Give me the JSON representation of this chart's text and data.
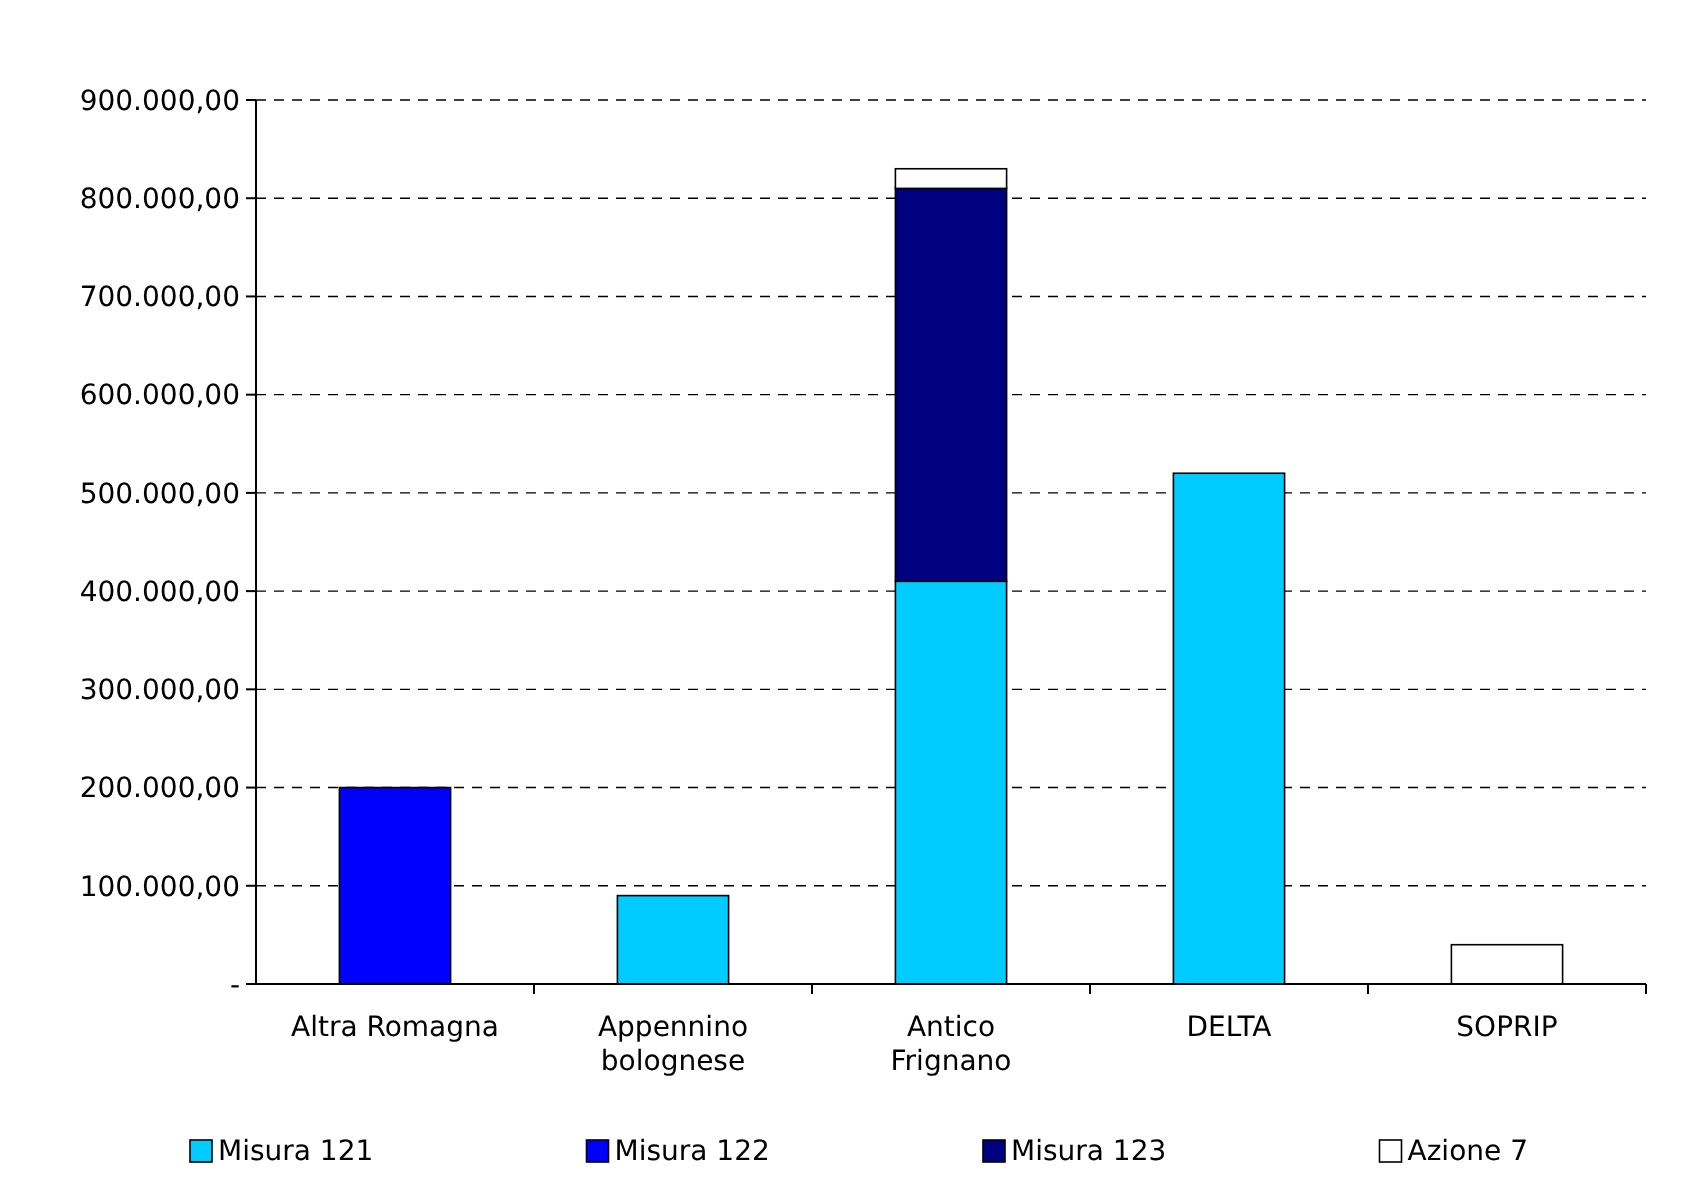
{
  "chart_data": {
    "type": "bar",
    "stacked": true,
    "categories": [
      "Altra Romagna",
      "Appennino bolognese",
      "Antico Frignano",
      "DELTA",
      "SOPRIP"
    ],
    "series": [
      {
        "name": "Misura 121",
        "color": "#00ccff",
        "values": [
          null,
          90000,
          410000,
          520000,
          null
        ]
      },
      {
        "name": "Misura 122",
        "color": "#0000ff",
        "values": [
          200000,
          null,
          null,
          null,
          null
        ]
      },
      {
        "name": "Misura 123",
        "color": "#000080",
        "values": [
          null,
          null,
          400000,
          null,
          null
        ]
      },
      {
        "name": "Azione 7",
        "color": "#ffffff",
        "values": [
          null,
          null,
          20000,
          null,
          40000
        ]
      }
    ],
    "ylim": [
      0,
      900000
    ],
    "yticks": [
      {
        "value": 0,
        "label": "-"
      },
      {
        "value": 100000,
        "label": "100.000,00"
      },
      {
        "value": 200000,
        "label": "200.000,00"
      },
      {
        "value": 300000,
        "label": "300.000,00"
      },
      {
        "value": 400000,
        "label": "400.000,00"
      },
      {
        "value": 500000,
        "label": "500.000,00"
      },
      {
        "value": 600000,
        "label": "600.000,00"
      },
      {
        "value": 700000,
        "label": "700.000,00"
      },
      {
        "value": 800000,
        "label": "800.000,00"
      },
      {
        "value": 900000,
        "label": "900.000,00"
      }
    ],
    "grid": "y",
    "legend": "bottom"
  }
}
